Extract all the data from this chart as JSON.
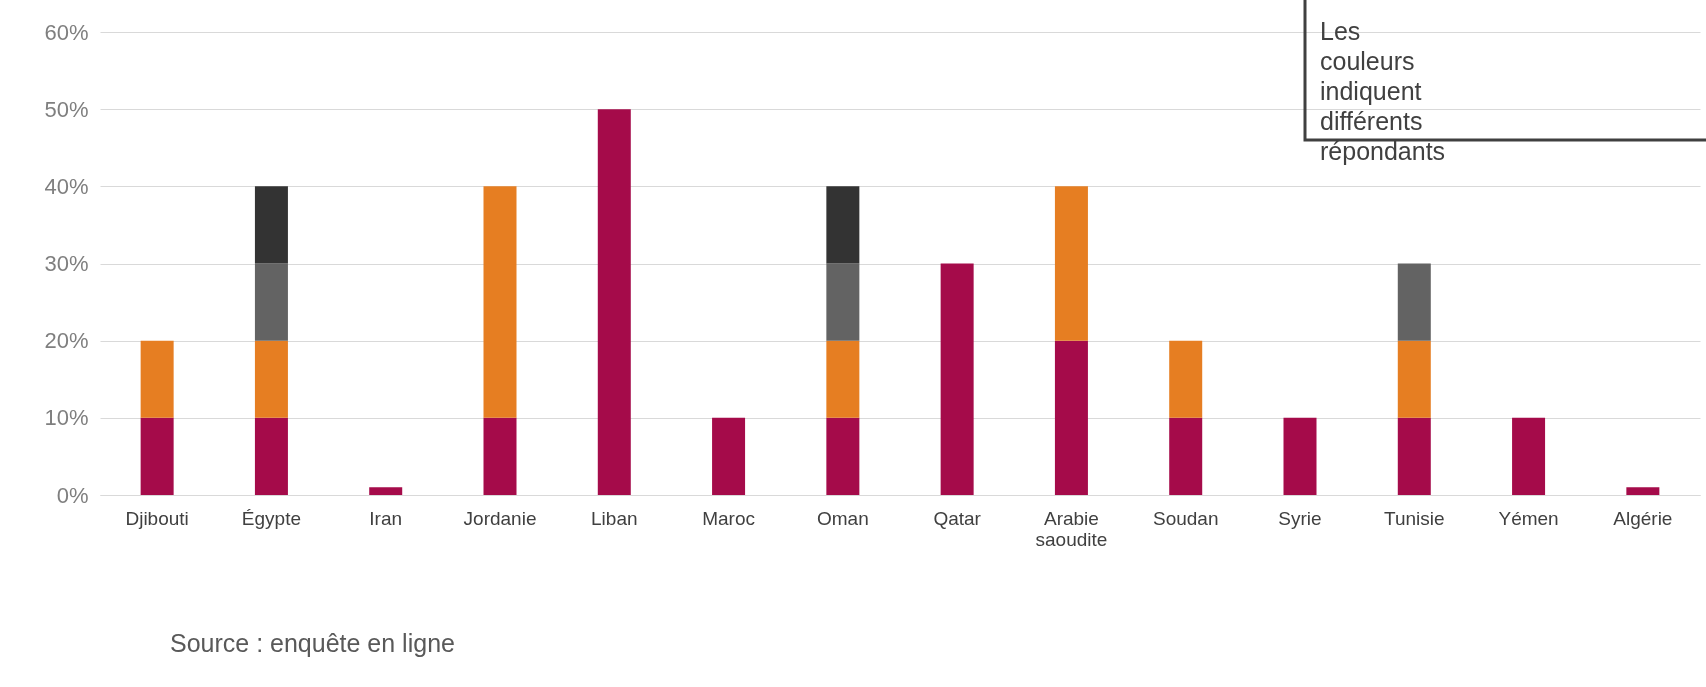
{
  "chart_data": {
    "type": "bar",
    "stacked": true,
    "categories": [
      "Djibouti",
      "Égypte",
      "Iran",
      "Jordanie",
      "Liban",
      "Maroc",
      "Oman",
      "Qatar",
      "Arabie saoudite",
      "Soudan",
      "Syrie",
      "Tunisie",
      "Yémen",
      "Algérie"
    ],
    "series": [
      {
        "color": "#a50b4a",
        "values": [
          10,
          10,
          1,
          10,
          50,
          10,
          10,
          30,
          20,
          10,
          10,
          10,
          10,
          1
        ]
      },
      {
        "color": "#e67e22",
        "values": [
          10,
          10,
          null,
          30,
          null,
          null,
          10,
          null,
          20,
          10,
          null,
          10,
          null,
          null
        ]
      },
      {
        "color": "#636363",
        "values": [
          null,
          10,
          null,
          null,
          null,
          null,
          10,
          null,
          null,
          null,
          null,
          10,
          null,
          null
        ]
      },
      {
        "color": "#333333",
        "values": [
          null,
          10,
          null,
          null,
          null,
          null,
          10,
          null,
          null,
          null,
          null,
          null,
          null,
          null
        ]
      }
    ],
    "ylim": [
      0,
      60
    ],
    "yticks": [
      {
        "value": 0,
        "label": "0%"
      },
      {
        "value": 10,
        "label": "10%"
      },
      {
        "value": 20,
        "label": "20%"
      },
      {
        "value": 30,
        "label": "30%"
      },
      {
        "value": 40,
        "label": "40%"
      },
      {
        "value": 50,
        "label": "50%"
      },
      {
        "value": 60,
        "label": "60%"
      }
    ],
    "grid": "y",
    "legend": false,
    "annotations": [
      "Les couleurs indiquent différents répondants",
      "Source : enquête en ligne"
    ]
  }
}
